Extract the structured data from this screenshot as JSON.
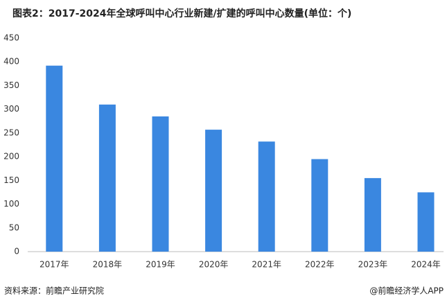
{
  "chart_data": {
    "type": "bar",
    "title": "图表2：2017-2024年全球呼叫中心行业新建/扩建的呼叫中心数量(单位：个)",
    "categories": [
      "2017年",
      "2018年",
      "2019年",
      "2020年",
      "2021年",
      "2022年",
      "2023年",
      "2024年"
    ],
    "values": [
      392,
      310,
      285,
      257,
      232,
      195,
      155,
      125
    ],
    "color": "#3a87e0",
    "ylim": [
      0,
      450
    ],
    "yticks": [
      0,
      50,
      100,
      150,
      200,
      250,
      300,
      350,
      400,
      450
    ],
    "grid": false,
    "source": "资料来源：前瞻产业研究院",
    "credit": "@前瞻经济学人APP"
  }
}
